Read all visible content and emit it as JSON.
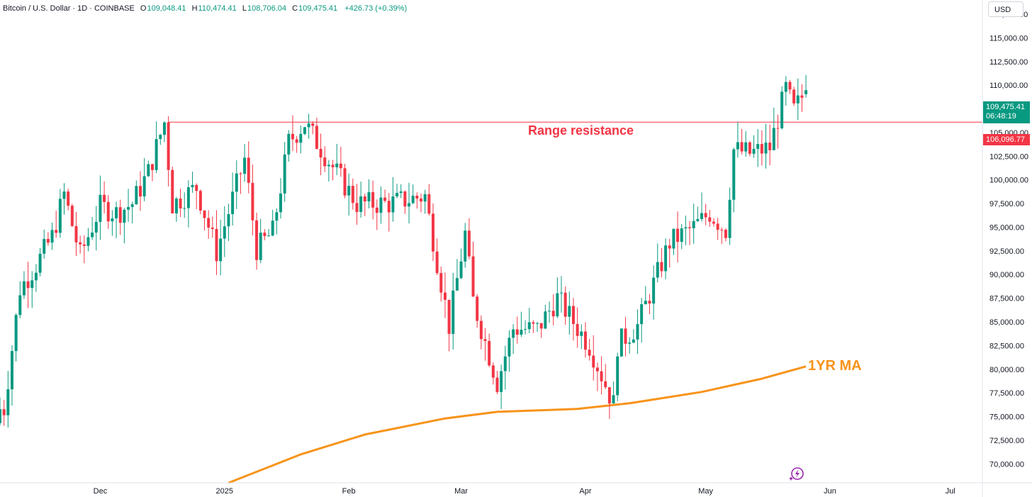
{
  "header": {
    "symbol": "Bitcoin / U.S. Dollar · 1D · COINBASE",
    "open_label": "O",
    "open": "109,048.41",
    "high_label": "H",
    "high": "110,474.41",
    "low_label": "L",
    "low": "108,706.04",
    "close_label": "C",
    "close": "109,475.41",
    "change": "+426.73 (+0.39%)"
  },
  "currency_button": "USD",
  "last_price": {
    "price": "109,475.41",
    "countdown": "06:48:19"
  },
  "resistance_price": "106,096.77",
  "annotations": {
    "range": "Range resistance",
    "ma": "1YR MA"
  },
  "colors": {
    "up": "#089981",
    "down": "#f23645",
    "ma": "#f7931a",
    "resistance": "#f23645"
  },
  "icons": {
    "bolt": "lightning-bolt-icon"
  },
  "chart_data": {
    "type": "candlestick",
    "symbol": "BTCUSD",
    "timeframe": "1D",
    "x_tick_labels": [
      "Dec",
      "2025",
      "Feb",
      "Mar",
      "Apr",
      "May",
      "Jun",
      "Jul"
    ],
    "y_tick_labels": [
      "70,000.00",
      "72,500.00",
      "75,000.00",
      "77,500.00",
      "80,000.00",
      "82,500.00",
      "85,000.00",
      "87,500.00",
      "90,000.00",
      "92,500.00",
      "95,000.00",
      "97,500.00",
      "100,000.00",
      "102,500.00",
      "105,000.00",
      "107,500.00",
      "110,000.00",
      "112,500.00",
      "115,000.00",
      "117,500.00"
    ],
    "y_range": [
      68000,
      119000
    ],
    "date_range": [
      "2024-11-06",
      "2025-07-09"
    ],
    "resistance_level": 106096.77,
    "closes_by_week": [
      {
        "date": "2024-11-07",
        "close": 75800
      },
      {
        "date": "2024-11-11",
        "close": 88500
      },
      {
        "date": "2024-11-15",
        "close": 91000
      },
      {
        "date": "2024-11-19",
        "close": 94000
      },
      {
        "date": "2024-11-22",
        "close": 98500
      },
      {
        "date": "2024-11-26",
        "close": 92000
      },
      {
        "date": "2024-12-01",
        "close": 97200
      },
      {
        "date": "2024-12-05",
        "close": 96500
      },
      {
        "date": "2024-12-09",
        "close": 97500
      },
      {
        "date": "2024-12-13",
        "close": 100800
      },
      {
        "date": "2024-12-17",
        "close": 106100
      },
      {
        "date": "2024-12-19",
        "close": 97400
      },
      {
        "date": "2024-12-25",
        "close": 99200
      },
      {
        "date": "2024-12-30",
        "close": 92400
      },
      {
        "date": "2025-01-06",
        "close": 102200
      },
      {
        "date": "2025-01-09",
        "close": 92700
      },
      {
        "date": "2025-01-13",
        "close": 94500
      },
      {
        "date": "2025-01-17",
        "close": 104000
      },
      {
        "date": "2025-01-21",
        "close": 106000
      },
      {
        "date": "2025-01-27",
        "close": 102000
      },
      {
        "date": "2025-02-03",
        "close": 97500
      },
      {
        "date": "2025-02-11",
        "close": 97500
      },
      {
        "date": "2025-02-20",
        "close": 98300
      },
      {
        "date": "2025-02-26",
        "close": 84600
      },
      {
        "date": "2025-03-02",
        "close": 94300
      },
      {
        "date": "2025-03-04",
        "close": 87200
      },
      {
        "date": "2025-03-10",
        "close": 78600
      },
      {
        "date": "2025-03-14",
        "close": 84300
      },
      {
        "date": "2025-03-20",
        "close": 84200
      },
      {
        "date": "2025-03-25",
        "close": 87500
      },
      {
        "date": "2025-04-02",
        "close": 82500
      },
      {
        "date": "2025-04-08",
        "close": 76300
      },
      {
        "date": "2025-04-09",
        "close": 82600
      },
      {
        "date": "2025-04-14",
        "close": 84600
      },
      {
        "date": "2025-04-22",
        "close": 93400
      },
      {
        "date": "2025-04-28",
        "close": 95000
      },
      {
        "date": "2025-05-02",
        "close": 96500
      },
      {
        "date": "2025-05-06",
        "close": 94700
      },
      {
        "date": "2025-05-08",
        "close": 103200
      },
      {
        "date": "2025-05-12",
        "close": 102800
      },
      {
        "date": "2025-05-17",
        "close": 103400
      },
      {
        "date": "2025-05-21",
        "close": 109600
      },
      {
        "date": "2025-05-23",
        "close": 107300
      },
      {
        "date": "2025-05-26",
        "close": 109475.41
      }
    ],
    "series": [
      {
        "name": "1YR MA",
        "type": "line",
        "points": [
          {
            "date": "2025-01-02",
            "value": 68000
          },
          {
            "date": "2025-01-20",
            "value": 71000
          },
          {
            "date": "2025-02-05",
            "value": 73100
          },
          {
            "date": "2025-02-25",
            "value": 74800
          },
          {
            "date": "2025-03-10",
            "value": 75500
          },
          {
            "date": "2025-03-30",
            "value": 75800
          },
          {
            "date": "2025-04-12",
            "value": 76400
          },
          {
            "date": "2025-04-30",
            "value": 77600
          },
          {
            "date": "2025-05-15",
            "value": 79000
          },
          {
            "date": "2025-05-26",
            "value": 80300
          }
        ]
      }
    ]
  }
}
